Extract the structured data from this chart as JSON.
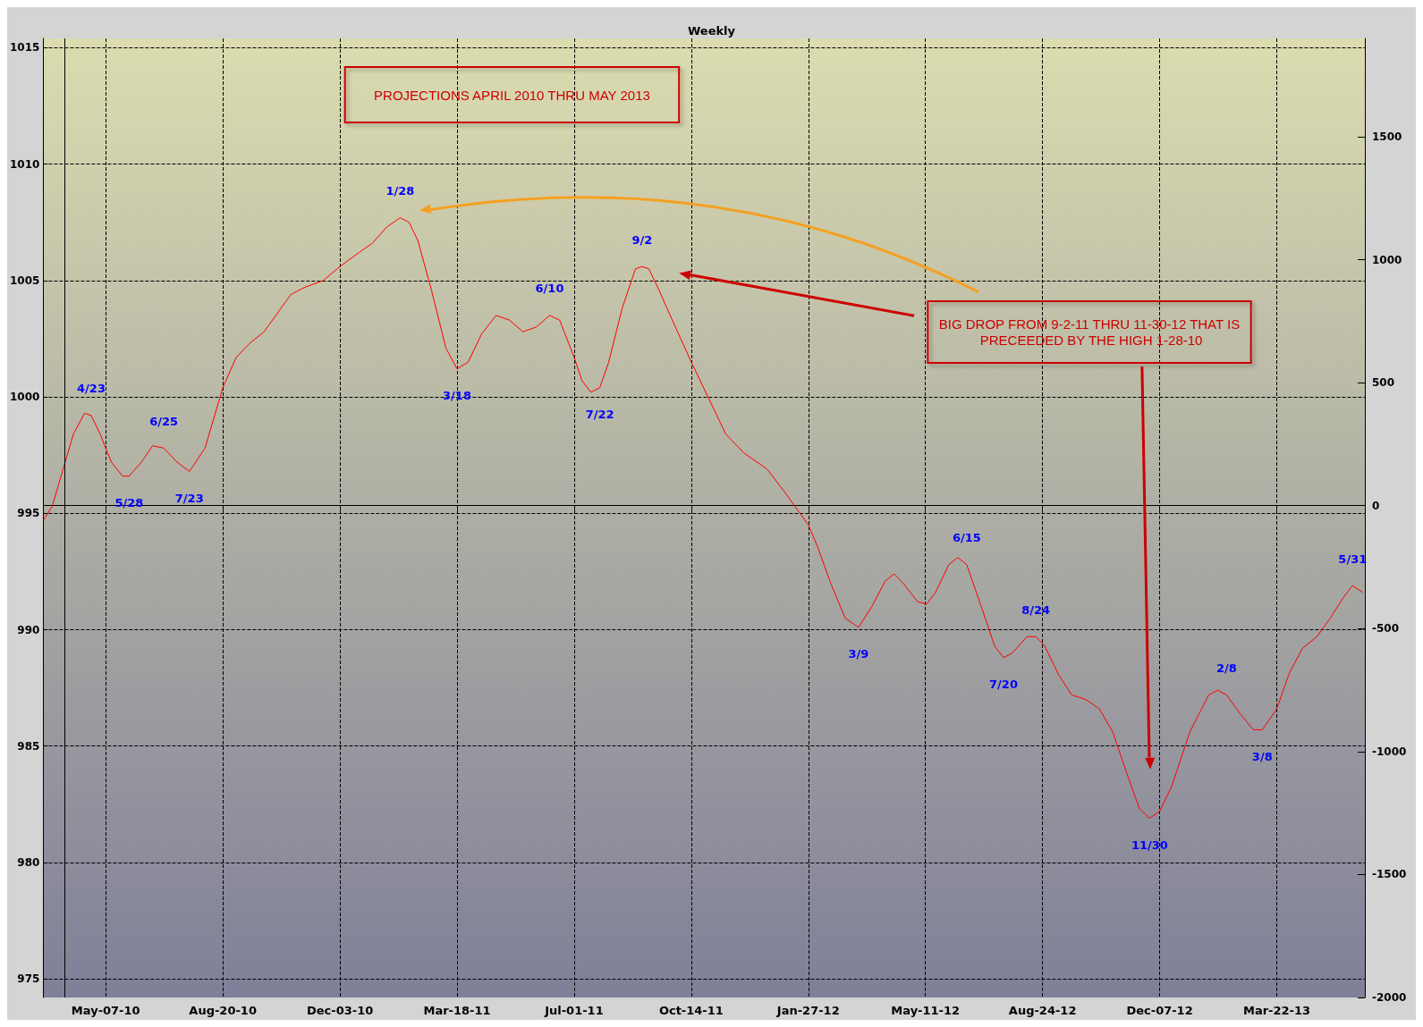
{
  "chart_data": {
    "type": "line",
    "subtitle": "Weekly",
    "x": [
      "2010-03-12",
      "2010-03-20",
      "2010-03-31",
      "2010-04-08",
      "2010-04-18",
      "2010-04-24",
      "2010-05-02",
      "2010-05-12",
      "2010-05-22",
      "2010-05-28",
      "2010-06-08",
      "2010-06-18",
      "2010-06-28",
      "2010-07-10",
      "2010-07-21",
      "2010-08-04",
      "2010-08-20",
      "2010-09-01",
      "2010-09-13",
      "2010-09-26",
      "2010-10-08",
      "2010-10-20",
      "2010-11-01",
      "2010-11-18",
      "2010-12-03",
      "2010-12-20",
      "2011-01-01",
      "2011-01-14",
      "2011-01-26",
      "2011-02-03",
      "2011-02-11",
      "2011-02-23",
      "2011-03-08",
      "2011-03-18",
      "2011-03-28",
      "2011-04-09",
      "2011-04-22",
      "2011-05-04",
      "2011-05-16",
      "2011-05-28",
      "2011-06-09",
      "2011-06-18",
      "2011-07-01",
      "2011-07-08",
      "2011-07-16",
      "2011-07-24",
      "2011-08-01",
      "2011-08-13",
      "2011-08-25",
      "2011-08-31",
      "2011-09-06",
      "2011-09-15",
      "2011-09-27",
      "2011-10-14",
      "2011-10-29",
      "2011-11-14",
      "2011-11-30",
      "2011-12-21",
      "2012-01-06",
      "2012-01-27",
      "2012-02-04",
      "2012-02-16",
      "2012-02-29",
      "2012-03-12",
      "2012-03-24",
      "2012-04-05",
      "2012-04-13",
      "2012-04-21",
      "2012-05-04",
      "2012-05-12",
      "2012-05-20",
      "2012-06-01",
      "2012-06-09",
      "2012-06-17",
      "2012-06-30",
      "2012-07-12",
      "2012-07-20",
      "2012-07-28",
      "2012-08-10",
      "2012-08-18",
      "2012-08-26",
      "2012-09-07",
      "2012-09-19",
      "2012-10-02",
      "2012-10-14",
      "2012-10-26",
      "2012-11-07",
      "2012-11-19",
      "2012-11-28",
      "2012-12-07",
      "2012-12-18",
      "2013-01-03",
      "2013-01-20",
      "2013-01-28",
      "2013-02-05",
      "2013-02-17",
      "2013-03-01",
      "2013-03-09",
      "2013-03-22",
      "2013-04-02",
      "2013-04-14",
      "2013-04-27",
      "2013-05-09",
      "2013-05-21",
      "2013-05-29",
      "2013-06-07"
    ],
    "series": [
      {
        "color": "#ff0000",
        "values": [
          994.7,
          995.3,
          997.1,
          998.4,
          999.3,
          999.2,
          998.4,
          997.2,
          996.6,
          996.6,
          997.2,
          997.9,
          997.8,
          997.2,
          996.8,
          997.8,
          1000.4,
          1001.7,
          1002.3,
          1002.8,
          1003.6,
          1004.4,
          1004.7,
          1005.0,
          1005.6,
          1006.2,
          1006.6,
          1007.3,
          1007.7,
          1007.5,
          1006.7,
          1004.6,
          1002.1,
          1001.2,
          1001.5,
          1002.7,
          1003.5,
          1003.3,
          1002.8,
          1003.0,
          1003.5,
          1003.3,
          1001.7,
          1000.7,
          1000.2,
          1000.4,
          1001.5,
          1003.8,
          1005.5,
          1005.6,
          1005.5,
          1004.6,
          1003.3,
          1001.5,
          1000.0,
          998.4,
          997.6,
          996.9,
          995.9,
          994.5,
          993.6,
          992.0,
          990.5,
          990.1,
          991.0,
          992.1,
          992.4,
          992.0,
          991.2,
          991.1,
          991.6,
          992.8,
          993.1,
          992.8,
          991.0,
          989.3,
          988.8,
          989.0,
          989.7,
          989.7,
          989.3,
          988.1,
          987.2,
          987.0,
          986.6,
          985.6,
          983.9,
          982.3,
          981.9,
          982.2,
          983.3,
          985.6,
          987.2,
          987.4,
          987.2,
          986.4,
          985.7,
          985.7,
          986.6,
          988.1,
          989.2,
          989.7,
          990.5,
          991.4,
          991.9,
          991.6
        ]
      }
    ],
    "xlim": [
      "2010-03-12",
      "2013-06-09"
    ],
    "xticks": [
      {
        "value": "2010-05-07",
        "label": "May-07-10"
      },
      {
        "value": "2010-08-20",
        "label": "Aug-20-10"
      },
      {
        "value": "2010-12-03",
        "label": "Dec-03-10"
      },
      {
        "value": "2011-03-18",
        "label": "Mar-18-11"
      },
      {
        "value": "2011-07-01",
        "label": "Jul-01-11"
      },
      {
        "value": "2011-10-14",
        "label": "Oct-14-11"
      },
      {
        "value": "2012-01-27",
        "label": "Jan-27-12"
      },
      {
        "value": "2012-05-11",
        "label": "May-11-12"
      },
      {
        "value": "2012-08-24",
        "label": "Aug-24-12"
      },
      {
        "value": "2012-12-07",
        "label": "Dec-07-12"
      },
      {
        "value": "2013-03-22",
        "label": "Mar-22-13"
      }
    ],
    "ylim": [
      974.2,
      1015.4
    ],
    "yticks": [
      975,
      980,
      985,
      990,
      995,
      1000,
      1005,
      1010,
      1015
    ],
    "y2lim": [
      -2000,
      1900
    ],
    "y2ticks": [
      -2000,
      -1500,
      -1000,
      -500,
      0,
      500,
      1000,
      1500
    ],
    "grid": true,
    "ref_lines": [
      {
        "axis": "x",
        "value": "2010-03-31",
        "color": "#000000",
        "line_style": "solid"
      }
    ],
    "annotations": [
      "PROJECTIONS APRIL 2010 THRU MAY 2013",
      "BIG DROP FROM 9-2-11 THRU 11-30-12 THAT IS PRECEEDED BY THE HIGH 1-28-10",
      {
        "text": "4/23",
        "x": "2010-04-24",
        "y": 999.2
      },
      {
        "text": "5/28",
        "x": "2010-05-28",
        "y": 996.6
      },
      {
        "text": "6/25",
        "x": "2010-06-28",
        "y": 997.8
      },
      {
        "text": "7/23",
        "x": "2010-07-21",
        "y": 996.8
      },
      {
        "text": "1/28",
        "x": "2011-01-26",
        "y": 1007.7
      },
      {
        "text": "3/18",
        "x": "2011-03-18",
        "y": 1001.2
      },
      {
        "text": "6/10",
        "x": "2011-06-09",
        "y": 1003.5
      },
      {
        "text": "7/22",
        "x": "2011-07-24",
        "y": 1000.4
      },
      {
        "text": "9/2",
        "x": "2011-08-31",
        "y": 1005.6
      },
      {
        "text": "3/9",
        "x": "2012-03-12",
        "y": 990.1
      },
      {
        "text": "6/15",
        "x": "2012-06-17",
        "y": 992.8
      },
      {
        "text": "7/20",
        "x": "2012-07-20",
        "y": 988.8
      },
      {
        "text": "8/24",
        "x": "2012-08-18",
        "y": 989.7
      },
      {
        "text": "11/30",
        "x": "2012-11-28",
        "y": 981.9
      },
      {
        "text": "2/8",
        "x": "2013-02-05",
        "y": 987.2
      },
      {
        "text": "3/8",
        "x": "2013-03-09",
        "y": 985.7
      },
      {
        "text": "5/31",
        "x": "2013-05-29",
        "y": 991.9
      }
    ]
  }
}
